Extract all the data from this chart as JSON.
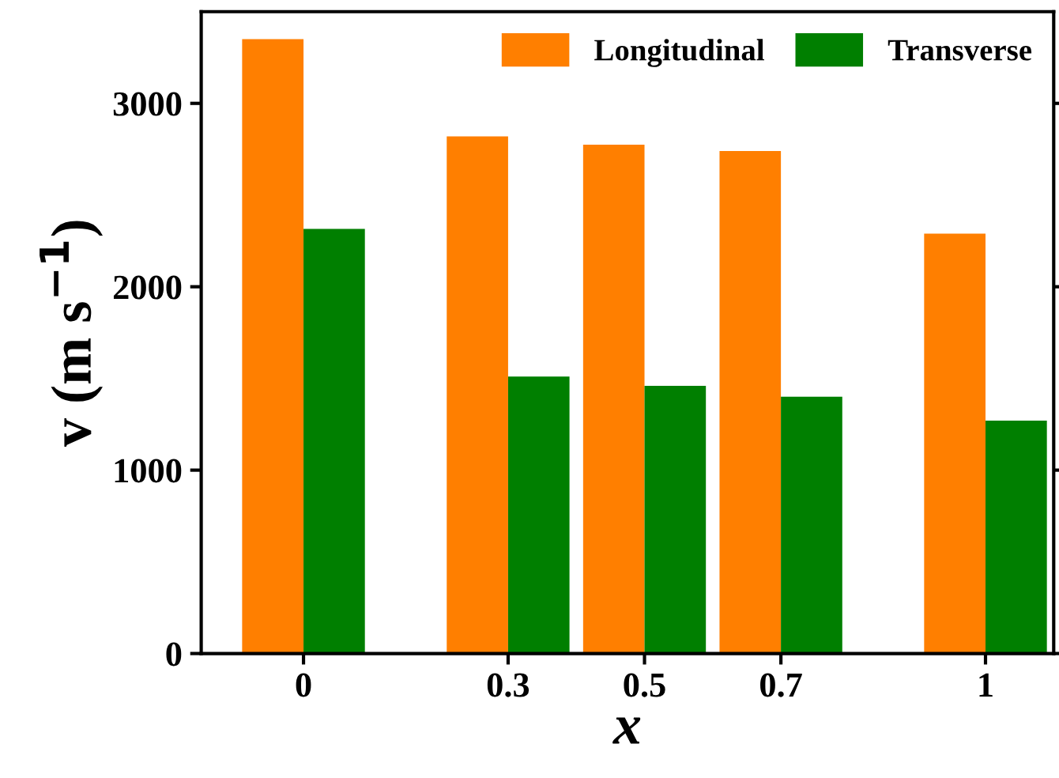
{
  "chart_data": {
    "type": "bar",
    "xlabel": "x",
    "ylabel": "v (m s$^{−1}$)",
    "x": [
      0,
      0.3,
      0.5,
      0.7,
      1
    ],
    "series": [
      {
        "name": "Longitudinal",
        "color": "#ff7f00",
        "values": [
          3350,
          2820,
          2775,
          2740,
          2290
        ]
      },
      {
        "name": "Transverse",
        "color": "#007f00",
        "values": [
          2315,
          1510,
          1460,
          1400,
          1270
        ]
      }
    ],
    "xlim": [
      -0.15,
      1.1
    ],
    "xticks": [
      0,
      0.3,
      0.5,
      0.7,
      1
    ],
    "ylim": [
      0,
      3500
    ],
    "yticks": [
      0,
      1000,
      2000,
      3000
    ],
    "legend": "top right",
    "grid": false
  }
}
